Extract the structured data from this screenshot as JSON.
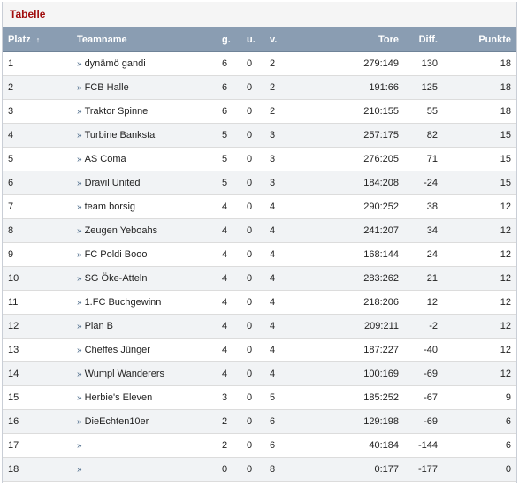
{
  "title": "Tabelle",
  "columns": {
    "platz": "Platz",
    "sort_icon": "↑",
    "teamname": "Teamname",
    "g": "g.",
    "u": "u.",
    "v": "v.",
    "tore": "Tore",
    "diff": "Diff.",
    "punkte": "Punkte"
  },
  "link_glyph": "»",
  "rows": [
    {
      "platz": "1",
      "team": "dynämö gandi",
      "g": "6",
      "u": "0",
      "v": "2",
      "tore": "279:149",
      "diff": "130",
      "punkte": "18"
    },
    {
      "platz": "2",
      "team": "FCB Halle",
      "g": "6",
      "u": "0",
      "v": "2",
      "tore": "191:66",
      "diff": "125",
      "punkte": "18"
    },
    {
      "platz": "3",
      "team": "Traktor Spinne",
      "g": "6",
      "u": "0",
      "v": "2",
      "tore": "210:155",
      "diff": "55",
      "punkte": "18"
    },
    {
      "platz": "4",
      "team": "Turbine Banksta",
      "g": "5",
      "u": "0",
      "v": "3",
      "tore": "257:175",
      "diff": "82",
      "punkte": "15"
    },
    {
      "platz": "5",
      "team": "AS Coma",
      "g": "5",
      "u": "0",
      "v": "3",
      "tore": "276:205",
      "diff": "71",
      "punkte": "15"
    },
    {
      "platz": "6",
      "team": "Dravil United",
      "g": "5",
      "u": "0",
      "v": "3",
      "tore": "184:208",
      "diff": "-24",
      "punkte": "15"
    },
    {
      "platz": "7",
      "team": "team borsig",
      "g": "4",
      "u": "0",
      "v": "4",
      "tore": "290:252",
      "diff": "38",
      "punkte": "12"
    },
    {
      "platz": "8",
      "team": "Zeugen Yeboahs",
      "g": "4",
      "u": "0",
      "v": "4",
      "tore": "241:207",
      "diff": "34",
      "punkte": "12"
    },
    {
      "platz": "9",
      "team": "FC Poldi Booo",
      "g": "4",
      "u": "0",
      "v": "4",
      "tore": "168:144",
      "diff": "24",
      "punkte": "12"
    },
    {
      "platz": "10",
      "team": "SG Öke-Atteln",
      "g": "4",
      "u": "0",
      "v": "4",
      "tore": "283:262",
      "diff": "21",
      "punkte": "12"
    },
    {
      "platz": "11",
      "team": "1.FC Buchgewinn",
      "g": "4",
      "u": "0",
      "v": "4",
      "tore": "218:206",
      "diff": "12",
      "punkte": "12"
    },
    {
      "platz": "12",
      "team": "Plan B",
      "g": "4",
      "u": "0",
      "v": "4",
      "tore": "209:211",
      "diff": "-2",
      "punkte": "12"
    },
    {
      "platz": "13",
      "team": "Cheffes Jünger",
      "g": "4",
      "u": "0",
      "v": "4",
      "tore": "187:227",
      "diff": "-40",
      "punkte": "12"
    },
    {
      "platz": "14",
      "team": "Wumpl Wanderers",
      "g": "4",
      "u": "0",
      "v": "4",
      "tore": "100:169",
      "diff": "-69",
      "punkte": "12"
    },
    {
      "platz": "15",
      "team": "Herbie's Eleven",
      "g": "3",
      "u": "0",
      "v": "5",
      "tore": "185:252",
      "diff": "-67",
      "punkte": "9"
    },
    {
      "platz": "16",
      "team": "DieEchten10er",
      "g": "2",
      "u": "0",
      "v": "6",
      "tore": "129:198",
      "diff": "-69",
      "punkte": "6"
    },
    {
      "platz": "17",
      "team": "",
      "g": "2",
      "u": "0",
      "v": "6",
      "tore": "40:184",
      "diff": "-144",
      "punkte": "6"
    },
    {
      "platz": "18",
      "team": "",
      "g": "0",
      "u": "0",
      "v": "8",
      "tore": "0:177",
      "diff": "-177",
      "punkte": "0"
    }
  ],
  "colors": {
    "title": "#a10d0d",
    "header_bg": "#8a9db2",
    "row_alt_bg": "#f1f3f5",
    "link_arrow": "#4a6a8a"
  }
}
